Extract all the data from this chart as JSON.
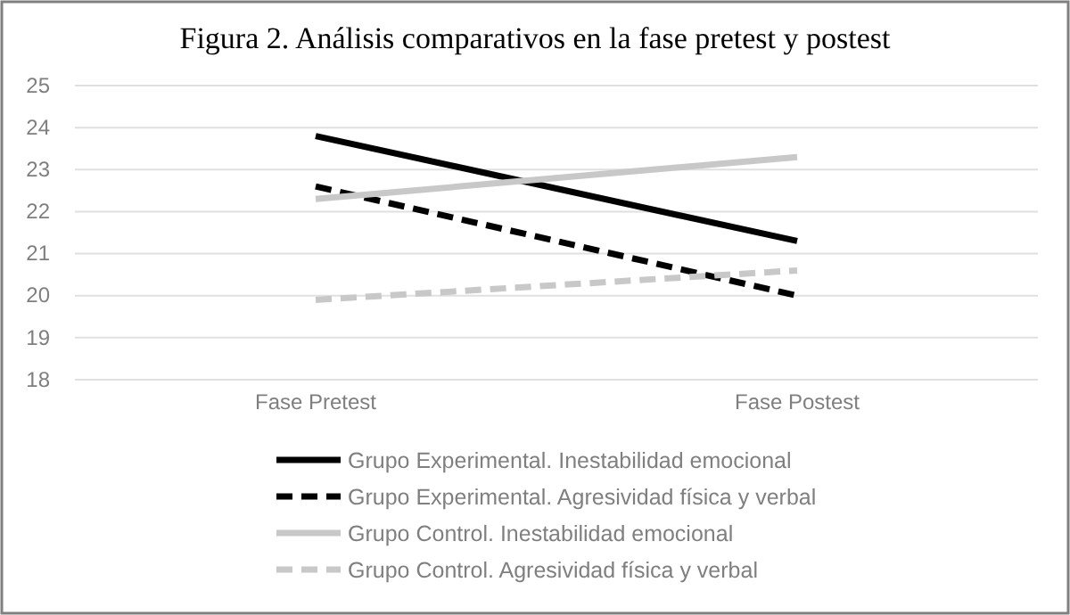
{
  "chart_data": {
    "type": "line",
    "title": "Figura 2. Análisis comparativos en la fase pretest y postest",
    "categories": [
      "Fase Pretest",
      "Fase Postest"
    ],
    "series": [
      {
        "name": "Grupo Experimental. Inestabilidad emocional",
        "color": "#000000",
        "line_style": "solid",
        "values": [
          23.8,
          21.3
        ]
      },
      {
        "name": "Grupo Experimental. Agresividad física y verbal",
        "color": "#000000",
        "line_style": "dashed",
        "values": [
          22.6,
          20.0
        ]
      },
      {
        "name": "Grupo Control. Inestabilidad emocional",
        "color": "#c8c8c8",
        "line_style": "solid",
        "values": [
          22.3,
          23.3
        ]
      },
      {
        "name": "Grupo Control. Agresividad física y verbal",
        "color": "#c8c8c8",
        "line_style": "dashed",
        "values": [
          19.9,
          20.6
        ]
      }
    ],
    "ylim": [
      18,
      25
    ],
    "yticks": [
      18,
      19,
      20,
      21,
      22,
      23,
      24,
      25
    ],
    "grid": "y",
    "legend": "bottom",
    "marker": "none"
  }
}
